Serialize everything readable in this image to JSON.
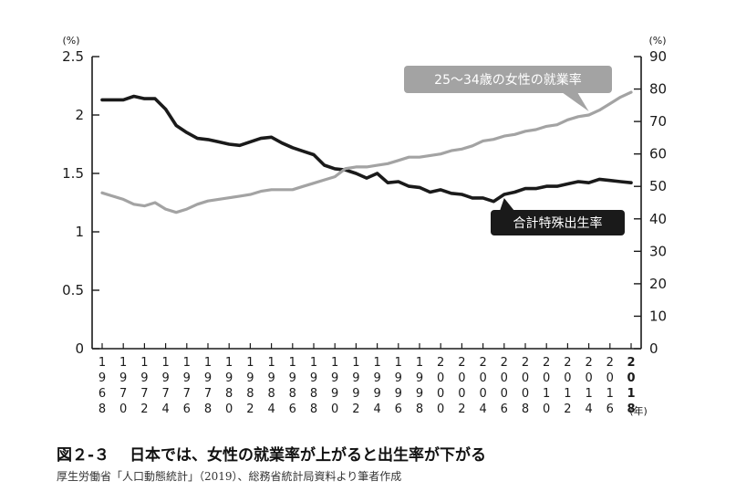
{
  "caption": {
    "figure_number": "図２-３",
    "title": "日本では、女性の就業率が上がると出生率が下がる"
  },
  "source": "厚生労働省「人口動態統計」（2019）、総務省統計局資料より筆者作成",
  "chart_data": {
    "type": "line",
    "xlabel_unit": "(年)",
    "left_axis": {
      "unit": "(%)",
      "ylim": [
        0,
        2.5
      ],
      "ticks": [
        "0",
        "0.5",
        "1",
        "1.5",
        "2",
        "2.5"
      ]
    },
    "right_axis": {
      "unit": "(%)",
      "ylim": [
        0,
        90
      ],
      "ticks": [
        "0",
        "10",
        "20",
        "30",
        "40",
        "50",
        "60",
        "70",
        "80",
        "90"
      ]
    },
    "x": [
      1968,
      1969,
      1970,
      1971,
      1972,
      1973,
      1974,
      1975,
      1976,
      1977,
      1978,
      1979,
      1980,
      1981,
      1982,
      1983,
      1984,
      1985,
      1986,
      1987,
      1988,
      1989,
      1990,
      1991,
      1992,
      1993,
      1994,
      1995,
      1996,
      1997,
      1998,
      1999,
      2000,
      2001,
      2002,
      2003,
      2004,
      2005,
      2006,
      2007,
      2008,
      2009,
      2010,
      2011,
      2012,
      2013,
      2014,
      2015,
      2016,
      2017,
      2018
    ],
    "x_tick_labels": [
      "1968",
      "1970",
      "1972",
      "1974",
      "1976",
      "1978",
      "1980",
      "1982",
      "1984",
      "1986",
      "1988",
      "1990",
      "1992",
      "1994",
      "1996",
      "1998",
      "2000",
      "2002",
      "2004",
      "2006",
      "2008",
      "2010",
      "2012",
      "2014",
      "2016",
      "2018"
    ],
    "series": [
      {
        "name": "合計特殊出生率",
        "axis": "left",
        "color": "#1a1a1a",
        "values": [
          2.13,
          2.13,
          2.13,
          2.16,
          2.14,
          2.14,
          2.05,
          1.91,
          1.85,
          1.8,
          1.79,
          1.77,
          1.75,
          1.74,
          1.77,
          1.8,
          1.81,
          1.76,
          1.72,
          1.69,
          1.66,
          1.57,
          1.54,
          1.53,
          1.5,
          1.46,
          1.5,
          1.42,
          1.43,
          1.39,
          1.38,
          1.34,
          1.36,
          1.33,
          1.32,
          1.29,
          1.29,
          1.26,
          1.32,
          1.34,
          1.37,
          1.37,
          1.39,
          1.39,
          1.41,
          1.43,
          1.42,
          1.45,
          1.44,
          1.43,
          1.42
        ]
      },
      {
        "name": "25〜34歳の女性の就業率",
        "axis": "right",
        "color": "#a3a3a3",
        "values": [
          48.0,
          47.0,
          46.0,
          44.5,
          44.0,
          45.0,
          43.0,
          42.0,
          43.0,
          44.5,
          45.5,
          46.0,
          46.5,
          47.0,
          47.5,
          48.5,
          49.0,
          49.0,
          49.0,
          50.0,
          51.0,
          52.0,
          53.0,
          55.5,
          56.0,
          56.0,
          56.5,
          57.0,
          58.0,
          59.0,
          59.0,
          59.5,
          60.0,
          61.0,
          61.5,
          62.5,
          64.0,
          64.5,
          65.5,
          66.0,
          67.0,
          67.5,
          68.5,
          69.0,
          70.5,
          71.5,
          72.0,
          73.5,
          75.5,
          77.5,
          79.0
        ]
      }
    ],
    "annotations": [
      {
        "text": "25〜34歳の女性の就業率",
        "series": 1,
        "style": "gray-box"
      },
      {
        "text": "合計特殊出生率",
        "series": 0,
        "style": "black-box"
      }
    ]
  }
}
